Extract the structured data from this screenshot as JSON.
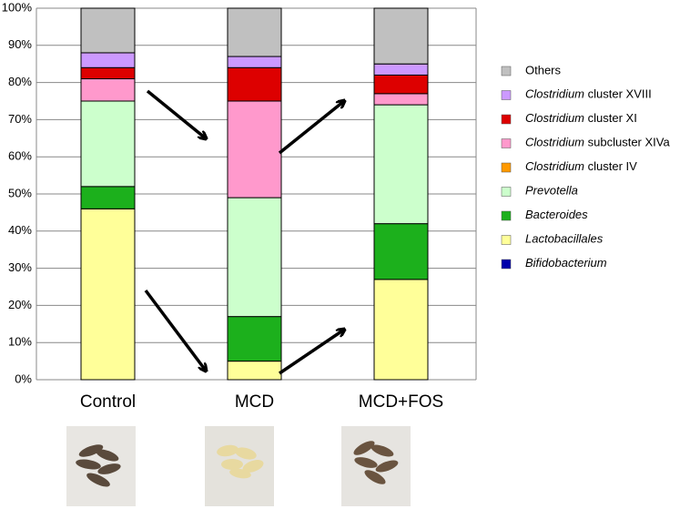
{
  "chart_data": {
    "type": "stacked_bar",
    "categories": [
      "Control",
      "MCD",
      "MCD+FOS"
    ],
    "series": [
      {
        "name": "Bifidobacterium",
        "color": "#0000aa",
        "values": [
          0,
          0,
          0
        ]
      },
      {
        "name": "Lactobacillales",
        "color": "#ffff99",
        "values": [
          46,
          5,
          27
        ]
      },
      {
        "name": "Bacteroides",
        "color": "#1cb01c",
        "values": [
          6,
          12,
          15
        ]
      },
      {
        "name": "Prevotella",
        "color": "#ccffcc",
        "values": [
          23,
          32,
          32
        ]
      },
      {
        "name": "Clostridium cluster IV",
        "color": "#ff9900",
        "values": [
          0,
          0,
          0
        ]
      },
      {
        "name": "Clostridium subcluster XIVa",
        "color": "#ff99cc",
        "values": [
          6,
          26,
          3
        ]
      },
      {
        "name": "Clostridium cluster XI",
        "color": "#dd0000",
        "values": [
          3,
          9,
          5
        ]
      },
      {
        "name": "Clostridium cluster XVIII",
        "color": "#cc99ff",
        "values": [
          4,
          3,
          3
        ]
      },
      {
        "name": "Others",
        "color": "#c0c0c0",
        "values": [
          12,
          13,
          15
        ]
      }
    ],
    "ylim": [
      0,
      100
    ],
    "yticks": [
      {
        "value": 0,
        "label": "0%"
      },
      {
        "value": 10,
        "label": "10%"
      },
      {
        "value": 20,
        "label": "20%"
      },
      {
        "value": 30,
        "label": "30%"
      },
      {
        "value": 40,
        "label": "40%"
      },
      {
        "value": 50,
        "label": "50%"
      },
      {
        "value": 60,
        "label": "60%"
      },
      {
        "value": 70,
        "label": "70%"
      },
      {
        "value": 80,
        "label": "80%"
      },
      {
        "value": 90,
        "label": "90%"
      },
      {
        "value": 100,
        "label": "100%"
      }
    ],
    "grid": true,
    "legend": "right"
  }
}
